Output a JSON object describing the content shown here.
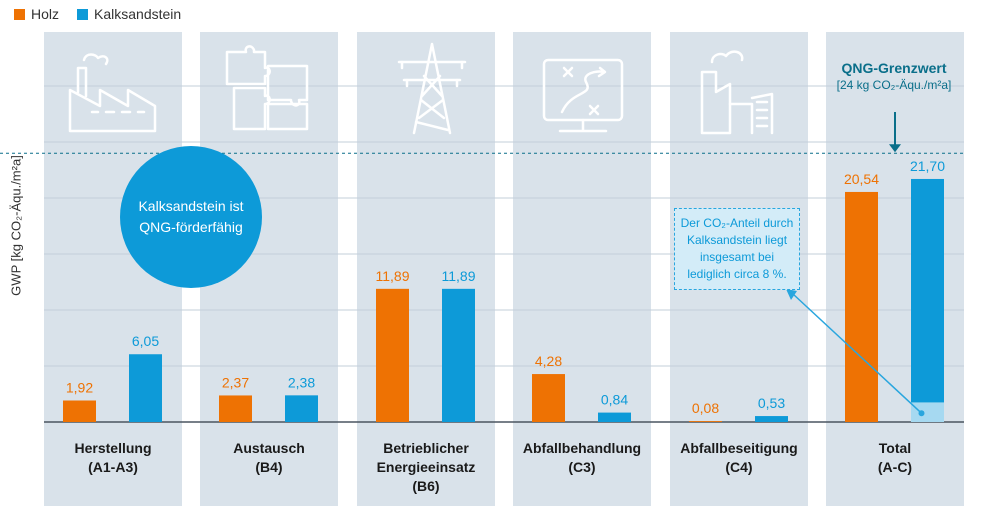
{
  "legend": {
    "series1": "Holz",
    "series2": "Kalksandstein"
  },
  "ylabel": "GWP [kg CO₂-Äqu./m²a]",
  "bubble": "Kalksandstein ist QNG-förderfähig",
  "qng": {
    "title": "QNG-Grenzwert",
    "subtitle": "[24 kg CO₂-Äqu./m²a]"
  },
  "note": "Der CO₂-Anteil durch Kalksandstein liegt insgesamt bei lediglich circa 8 %.",
  "colors": {
    "holz": "#ee7203",
    "kalksandstein": "#0d9ad8",
    "panel": "#d9e2ea",
    "highlight": "#a6d9f1",
    "threshold": "#0a6f8a"
  },
  "chart_data": {
    "type": "bar",
    "categories": [
      [
        "Herstellung",
        "(A1-A3)"
      ],
      [
        "Austausch",
        "(B4)"
      ],
      [
        "Betrieblicher",
        "Energieeinsatz",
        "(B6)"
      ],
      [
        "Abfallbehandlung",
        "(C3)"
      ],
      [
        "Abfallbeseitigung",
        "(C4)"
      ],
      [
        "Total",
        "(A-C)"
      ]
    ],
    "series": [
      {
        "name": "Holz",
        "values": [
          1.92,
          2.37,
          11.89,
          4.28,
          0.08,
          20.54
        ],
        "labels": [
          "1,92",
          "2,37",
          "11,89",
          "4,28",
          "0,08",
          "20,54"
        ]
      },
      {
        "name": "Kalksandstein",
        "values": [
          6.05,
          2.38,
          11.89,
          0.84,
          0.53,
          21.7
        ],
        "labels": [
          "6,05",
          "2,38",
          "11,89",
          "0,84",
          "0,53",
          "21,70"
        ]
      }
    ],
    "threshold": 24,
    "highlight_value": 1.75,
    "ylabel": "GWP [kg CO₂-Äqu./m²a]",
    "ylim": [
      0,
      35
    ],
    "grid": true,
    "legend_position": "top-left"
  }
}
